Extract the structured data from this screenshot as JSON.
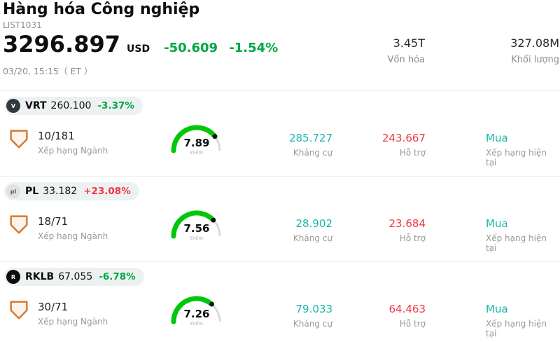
{
  "header": {
    "title": "Hàng hóa Công nghiệp",
    "subtitle": "LIST1031",
    "price": "3296.897",
    "currency": "USD",
    "change": "-50.609",
    "change_pct": "-1.54%",
    "timestamp": "03/20, 15:15",
    "timezone": "（ ET ）",
    "market_cap": "3.45T",
    "market_cap_label": "Vốn hóa",
    "volume": "327.08M",
    "volume_label": "Khối lượng"
  },
  "labels": {
    "rank_label": "Xếp hạng Ngành",
    "score_label": "Điểm",
    "resistance_label": "Kháng cự",
    "support_label": "Hỗ trợ",
    "rating_label": "Xếp hạng hiện tại"
  },
  "colors": {
    "down_green": "#00a843",
    "up_red": "#f23645",
    "teal": "#1ab5ac",
    "gauge_green": "#00c70a",
    "gauge_rest": "#d9d9d9",
    "dot": "#111111"
  },
  "stocks": [
    {
      "ticker": "VRT",
      "price": "260.100",
      "change_pct": "-3.37%",
      "change_color": "#00a843",
      "logo": {
        "bg": "#2e3a3d",
        "fg": "#ffffff",
        "glyph": "V"
      },
      "rank": "10/181",
      "score": "7.89",
      "resistance": "285.727",
      "support": "243.667",
      "rating": "Mua"
    },
    {
      "ticker": "PL",
      "price": "33.182",
      "change_pct": "+23.08%",
      "change_color": "#f23645",
      "logo": {
        "bg": "#dfe3e0",
        "fg": "#555a55",
        "glyph": "pl"
      },
      "rank": "18/71",
      "score": "7.56",
      "resistance": "28.902",
      "support": "23.684",
      "rating": "Mua"
    },
    {
      "ticker": "RKLB",
      "price": "67.055",
      "change_pct": "-6.78%",
      "change_color": "#00a843",
      "logo": {
        "bg": "#0d0d0d",
        "fg": "#ffffff",
        "glyph": "R"
      },
      "rank": "30/71",
      "score": "7.26",
      "resistance": "79.033",
      "support": "64.463",
      "rating": "Mua"
    }
  ]
}
